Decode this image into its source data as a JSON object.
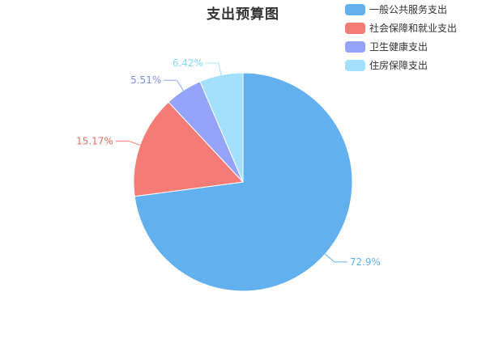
{
  "chart_data": {
    "type": "pie",
    "title": "支出预算图",
    "legend_position": "top-right",
    "start_angle_deg": 90,
    "direction": "clockwise",
    "slices": [
      {
        "name": "一般公共服务支出",
        "value": 72.9,
        "label": "72.9%",
        "color": "#62b0ee",
        "label_color": "#62b0ee"
      },
      {
        "name": "社会保障和就业支出",
        "value": 15.17,
        "label": "15.17%",
        "color": "#f47b76",
        "label_color": "#ef6a63"
      },
      {
        "name": "卫生健康支出",
        "value": 5.51,
        "label": "5.51%",
        "color": "#95a3fb",
        "label_color": "#7f8ff0"
      },
      {
        "name": "住房保障支出",
        "value": 6.42,
        "label": "6.42%",
        "color": "#a3e0fe",
        "label_color": "#86d6fb"
      }
    ]
  }
}
